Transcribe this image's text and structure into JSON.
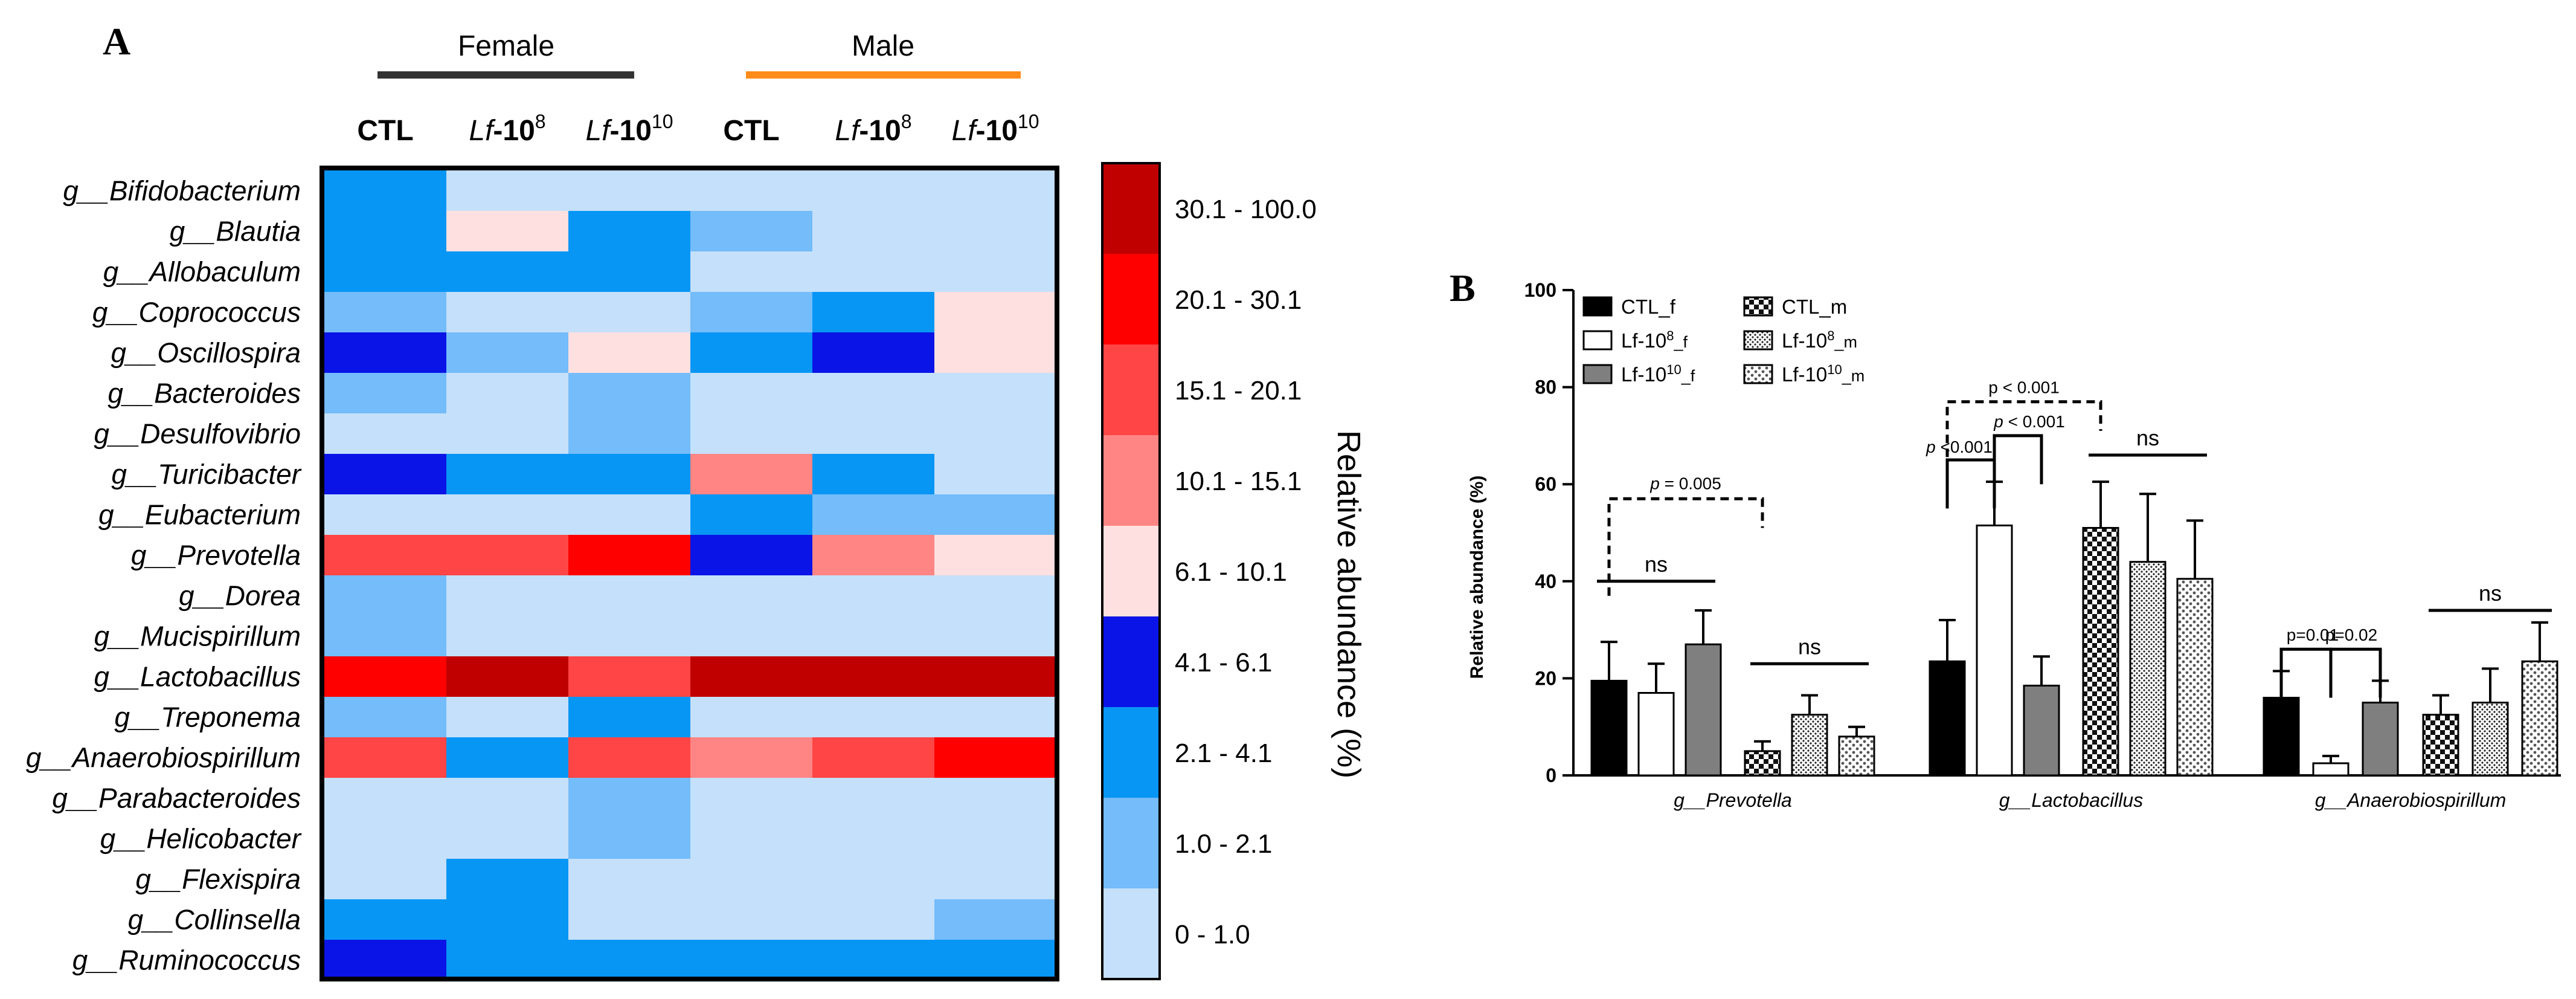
{
  "panel_a": {
    "label": "A",
    "groups": [
      {
        "name": "Female",
        "color": "#333333"
      },
      {
        "name": "Male",
        "color": "#FF8C1A"
      }
    ],
    "columns": [
      {
        "prefix": "",
        "text": "CTL",
        "sup": ""
      },
      {
        "prefix": "Lf",
        "text": "-10",
        "sup": "8"
      },
      {
        "prefix": "Lf",
        "text": "-10",
        "sup": "10"
      },
      {
        "prefix": "",
        "text": "CTL",
        "sup": ""
      },
      {
        "prefix": "Lf",
        "text": "-10",
        "sup": "8"
      },
      {
        "prefix": "Lf",
        "text": "-10",
        "sup": "10"
      }
    ],
    "legend_title": "Relative abundance (%)",
    "legend_bins": [
      {
        "label": "30.1 - 100.0",
        "color": "#C00000"
      },
      {
        "label": "20.1 - 30.1",
        "color": "#FF0000"
      },
      {
        "label": "15.1 - 20.1",
        "color": "#FF4545"
      },
      {
        "label": "10.1 - 15.1",
        "color": "#FF8585"
      },
      {
        "label": "6.1 - 10.1",
        "color": "#FFE0E0"
      },
      {
        "label": "4.1 - 6.1",
        "color": "#0A14E6"
      },
      {
        "label": "2.1 - 4.1",
        "color": "#0896F5"
      },
      {
        "label": "1.0 - 2.1",
        "color": "#74BCFA"
      },
      {
        "label": "0 - 1.0",
        "color": "#C5E0FA"
      }
    ]
  },
  "panel_b": {
    "label": "B",
    "legend": [
      {
        "name": "CTL_f",
        "pattern": "solid-black"
      },
      {
        "name": "Lf-10",
        "sup": "8",
        "suffix": "_f",
        "pattern": "white"
      },
      {
        "name": "Lf-10",
        "sup": "10",
        "suffix": "_f",
        "pattern": "gray"
      },
      {
        "name": "CTL_m",
        "pattern": "checker"
      },
      {
        "name": "Lf-10",
        "sup": "8",
        "suffix": "_m",
        "pattern": "dots-fine"
      },
      {
        "name": "Lf-10",
        "sup": "10",
        "suffix": "_m",
        "pattern": "dots-coarse"
      }
    ],
    "annotations": [
      {
        "group": 0,
        "text": "p = 0.005",
        "italic_p": true,
        "style": "dashed",
        "from": 0,
        "to": 3,
        "y": 57,
        "ticks": true
      },
      {
        "group": 0,
        "text": "ns",
        "style": "line",
        "from": 0,
        "to": 2,
        "y": 40
      },
      {
        "group": 0,
        "text": "ns",
        "style": "line",
        "from": 3,
        "to": 5,
        "y": 23
      },
      {
        "group": 1,
        "text": "p < 0.001",
        "style": "dashed",
        "from": 0,
        "to": 3,
        "y": 77,
        "ticks": true
      },
      {
        "group": 1,
        "text": "p <0.001",
        "italic_p": true,
        "style": "bracket",
        "from": 0,
        "to": 1,
        "y": 65
      },
      {
        "group": 1,
        "text": "p < 0.001",
        "italic_p": true,
        "style": "bracket",
        "from": 1,
        "to": 2,
        "y": 70
      },
      {
        "group": 1,
        "text": "ns",
        "style": "line",
        "from": 3,
        "to": 5,
        "y": 66
      },
      {
        "group": 2,
        "text": "p=0.01",
        "style": "bracket",
        "from": 0,
        "to": 1,
        "y": 26
      },
      {
        "group": 2,
        "text": "p=0.02",
        "style": "bracket",
        "from": 1,
        "to": 2,
        "y": 26
      },
      {
        "group": 2,
        "text": "ns",
        "style": "line",
        "from": 3,
        "to": 5,
        "y": 34
      }
    ]
  },
  "chart_data": [
    {
      "type": "heatmap",
      "title": "",
      "xlabel": "",
      "ylabel": "",
      "x": [
        "CTL (Female)",
        "Lf-10^8 (Female)",
        "Lf-10^10 (Female)",
        "CTL (Male)",
        "Lf-10^8 (Male)",
        "Lf-10^10 (Male)"
      ],
      "y": [
        "g__Bifidobacterium",
        "g__Blautia",
        "g__Allobaculum",
        "g__Coprococcus",
        "g__Oscillospira",
        "g__Bacteroides",
        "g__Desulfovibrio",
        "g__Turicibacter",
        "g__Eubacterium",
        "g__Prevotella",
        "g__Dorea",
        "g__Mucispirillum",
        "g__Lactobacillus",
        "g__Treponema",
        "g__Anaerobiospirillum",
        "g__Parabacteroides",
        "g__Helicobacter",
        "g__Flexispira",
        "g__Collinsella",
        "g__Ruminococcus"
      ],
      "cell_bins": [
        [
          2,
          0,
          0,
          0,
          0,
          0
        ],
        [
          2,
          4,
          2,
          1,
          0,
          0
        ],
        [
          2,
          2,
          2,
          0,
          0,
          0
        ],
        [
          1,
          0,
          0,
          1,
          2,
          4
        ],
        [
          5,
          1,
          4,
          2,
          5,
          4
        ],
        [
          1,
          0,
          1,
          0,
          0,
          0
        ],
        [
          0,
          0,
          1,
          0,
          0,
          0
        ],
        [
          5,
          2,
          2,
          10,
          2,
          0
        ],
        [
          0,
          0,
          0,
          2,
          1,
          1
        ],
        [
          15,
          15,
          20,
          5,
          10,
          4
        ],
        [
          1,
          0,
          0,
          0,
          0,
          0
        ],
        [
          1,
          0,
          0,
          0,
          0,
          0
        ],
        [
          20,
          30,
          15,
          30,
          30,
          30
        ],
        [
          1,
          0,
          2,
          0,
          0,
          0
        ],
        [
          15,
          2,
          15,
          10,
          15,
          20
        ],
        [
          0,
          0,
          1,
          0,
          0,
          0
        ],
        [
          0,
          0,
          1,
          0,
          0,
          0
        ],
        [
          0,
          2,
          0,
          0,
          0,
          0
        ],
        [
          2,
          2,
          0,
          0,
          0,
          1
        ],
        [
          5,
          2,
          2,
          2,
          2,
          2
        ]
      ],
      "bins": [
        {
          "code": 30,
          "label": "30.1 - 100.0"
        },
        {
          "code": 20,
          "label": "20.1 - 30.1"
        },
        {
          "code": 15,
          "label": "15.1 - 20.1"
        },
        {
          "code": 10,
          "label": "10.1 - 15.1"
        },
        {
          "code": 4,
          "label": "6.1 - 10.1"
        },
        {
          "code": 5,
          "label": "4.1 - 6.1"
        },
        {
          "code": 2,
          "label": "2.1 - 4.1"
        },
        {
          "code": 1,
          "label": "1.0 - 2.1"
        },
        {
          "code": 0,
          "label": "0 - 1.0"
        }
      ],
      "legend_title": "Relative abundance (%)"
    },
    {
      "type": "bar",
      "title": "",
      "xlabel": "",
      "ylabel": "Relative abundance (%)",
      "ylim": [
        0,
        100
      ],
      "yticks": [
        0,
        20,
        40,
        60,
        80,
        100
      ],
      "categories": [
        "g__Prevotella",
        "g__Lactobacillus",
        "g__Anaerobiospirillum"
      ],
      "series": [
        {
          "name": "CTL_f",
          "values": [
            19.5,
            23.5,
            16
          ],
          "errors": [
            8,
            8.5,
            5.5
          ]
        },
        {
          "name": "Lf-10^8_f",
          "values": [
            17,
            51.5,
            2.5
          ],
          "errors": [
            6,
            9,
            1.5
          ]
        },
        {
          "name": "Lf-10^10_f",
          "values": [
            27,
            18.5,
            15
          ],
          "errors": [
            7,
            6,
            4.5
          ]
        },
        {
          "name": "CTL_m",
          "values": [
            5,
            51,
            12.5
          ],
          "errors": [
            2,
            9.5,
            4
          ]
        },
        {
          "name": "Lf-10^8_m",
          "values": [
            12.5,
            44,
            15
          ],
          "errors": [
            4,
            14,
            7
          ]
        },
        {
          "name": "Lf-10^10_m",
          "values": [
            8,
            40.5,
            23.5
          ],
          "errors": [
            2,
            12,
            8
          ]
        }
      ],
      "legend_position": "top-left"
    }
  ]
}
